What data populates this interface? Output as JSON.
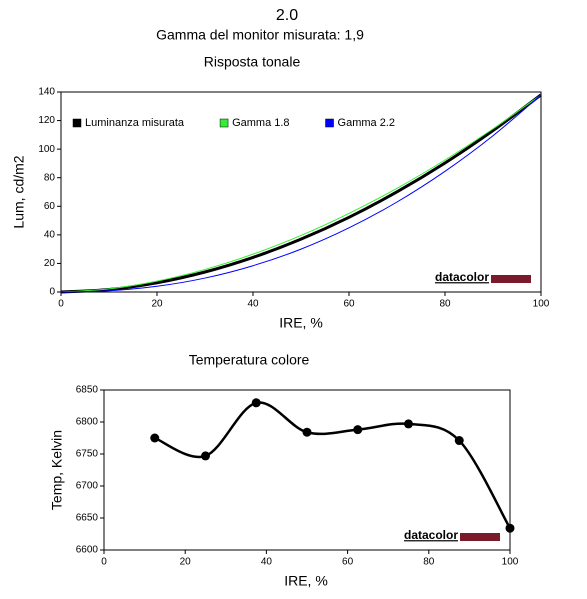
{
  "header": {
    "title": "2.0",
    "subtitle": "Gamma del monitor misurata: 1,9"
  },
  "chart_data": [
    {
      "type": "line",
      "title": "Risposta tonale",
      "x_label": "IRE, %",
      "y_label": "Lum, cd/m2",
      "x": [
        0,
        10,
        20,
        30,
        40,
        50,
        60,
        70,
        80,
        90,
        100
      ],
      "series": [
        {
          "name": "Luminanza misurata",
          "color": "#000000",
          "values": [
            0,
            1.74,
            6.48,
            14.0,
            24.2,
            37.0,
            52.3,
            70.1,
            90.3,
            113.0,
            138
          ]
        },
        {
          "name": "Gamma 1.8",
          "color": "#33ee33",
          "values": [
            0,
            2.19,
            7.62,
            15.8,
            26.5,
            39.6,
            55.0,
            72.6,
            92.4,
            114.2,
            138
          ]
        },
        {
          "name": "Gamma 2.2",
          "color": "#0000ff",
          "values": [
            0,
            0.87,
            4.0,
            9.76,
            18.4,
            30.0,
            44.9,
            63.0,
            84.5,
            109.4,
            138
          ]
        }
      ],
      "xlim": [
        0,
        100
      ],
      "xticks": [
        0,
        20,
        40,
        60,
        80,
        100
      ],
      "ylim": [
        0,
        140
      ],
      "yticks": [
        0,
        20,
        40,
        60,
        80,
        100,
        120,
        140
      ],
      "legend": "upper left",
      "grid": false,
      "watermark": "datacolor"
    },
    {
      "type": "line",
      "title": "Temperatura colore",
      "x_label": "IRE, %",
      "y_label": "Temp, Kelvin",
      "x": [
        12.5,
        25,
        37.5,
        50,
        62.5,
        75,
        87.5,
        100
      ],
      "series": [
        {
          "color": "#000000",
          "values": [
            6775,
            6747,
            6830,
            6784,
            6788,
            6797,
            6771,
            6634
          ]
        }
      ],
      "xlim": [
        0,
        100
      ],
      "xticks": [
        0,
        20,
        40,
        60,
        80,
        100
      ],
      "ylim": [
        6600,
        6850
      ],
      "yticks": [
        6600,
        6650,
        6700,
        6750,
        6800,
        6850
      ],
      "markers": true,
      "grid": false,
      "watermark": "datacolor"
    }
  ]
}
